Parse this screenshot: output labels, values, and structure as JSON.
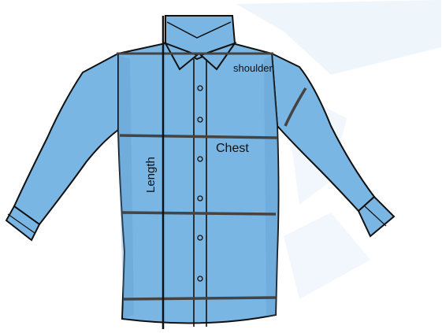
{
  "labels": {
    "shoulder": "shoulder",
    "chest": "Chest",
    "length": "Length"
  },
  "colors": {
    "shirt_fill": "#7ab6e4",
    "shirt_shadow": "#5e9fd2",
    "outline": "#111111",
    "measure_line": "#444444",
    "background_smudge": "#eef5fb"
  }
}
